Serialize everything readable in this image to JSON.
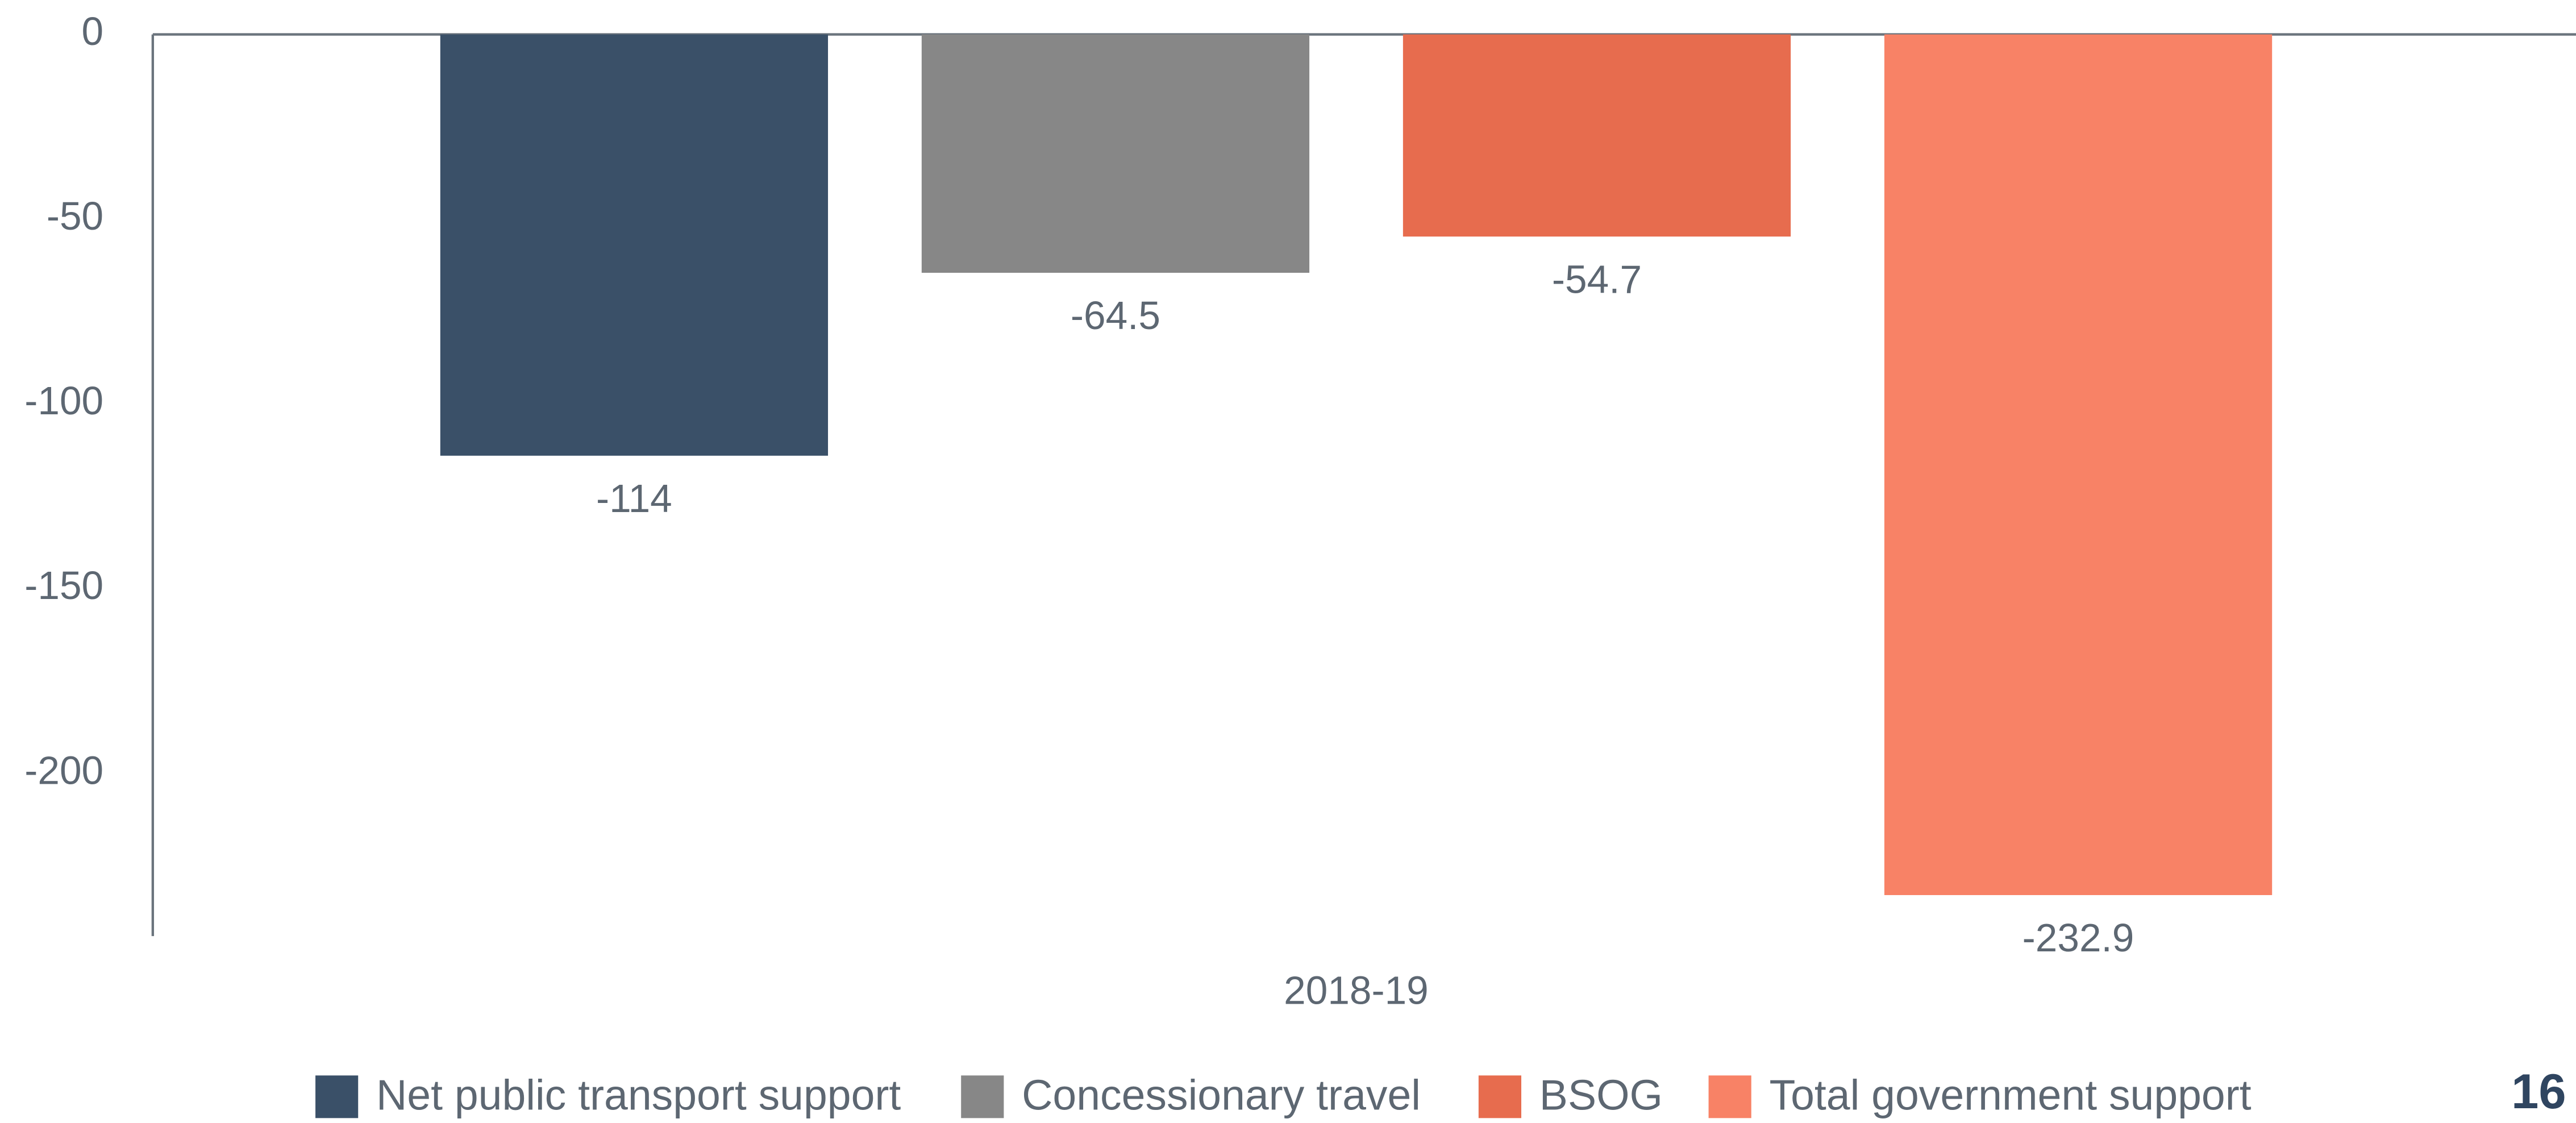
{
  "chart_data": {
    "type": "bar",
    "categories": [
      "2018-19"
    ],
    "series": [
      {
        "name": "Net public transport support",
        "color": "#3a5068",
        "values": [
          -114
        ]
      },
      {
        "name": "Concessionary travel",
        "color": "#878787",
        "values": [
          -64.5
        ]
      },
      {
        "name": "BSOG",
        "color": "#e76c4e",
        "values": [
          -54.7
        ]
      },
      {
        "name": "Total government support",
        "color": "#f88266",
        "values": [
          -232.9
        ]
      }
    ],
    "ylim": [
      -244,
      0
    ],
    "yticks": [
      0,
      -50,
      -100,
      -150,
      -200
    ],
    "grid": false,
    "legend": "bottom"
  },
  "page_number": "16"
}
